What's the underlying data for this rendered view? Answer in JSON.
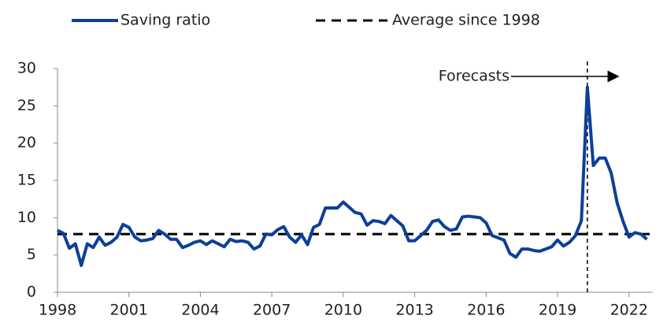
{
  "chart_data": {
    "type": "line",
    "x": [
      1998,
      1998.25,
      1998.5,
      1998.75,
      1999,
      1999.25,
      1999.5,
      1999.75,
      2000,
      2000.25,
      2000.5,
      2000.75,
      2001,
      2001.25,
      2001.5,
      2001.75,
      2002,
      2002.25,
      2002.5,
      2002.75,
      2003,
      2003.25,
      2003.5,
      2003.75,
      2004,
      2004.25,
      2004.5,
      2004.75,
      2005,
      2005.25,
      2005.5,
      2005.75,
      2006,
      2006.25,
      2006.5,
      2006.75,
      2007,
      2007.25,
      2007.5,
      2007.75,
      2008,
      2008.25,
      2008.5,
      2008.75,
      2009,
      2009.25,
      2009.5,
      2009.75,
      2010,
      2010.25,
      2010.5,
      2010.75,
      2011,
      2011.25,
      2011.5,
      2011.75,
      2012,
      2012.25,
      2012.5,
      2012.75,
      2013,
      2013.25,
      2013.5,
      2013.75,
      2014,
      2014.25,
      2014.5,
      2014.75,
      2015,
      2015.25,
      2015.5,
      2015.75,
      2016,
      2016.25,
      2016.5,
      2016.75,
      2017,
      2017.25,
      2017.5,
      2017.75,
      2018,
      2018.25,
      2018.5,
      2018.75,
      2019,
      2019.25,
      2019.5,
      2019.75,
      2020,
      2020.25,
      2020.5,
      2020.75,
      2021,
      2021.25,
      2021.5,
      2021.75,
      2022,
      2022.25,
      2022.5,
      2022.75
    ],
    "series": [
      {
        "name": "Saving ratio",
        "color": "#0c3f99",
        "values": [
          8.3,
          7.9,
          5.9,
          6.5,
          3.6,
          6.5,
          6.0,
          7.4,
          6.3,
          6.7,
          7.4,
          9.1,
          8.7,
          7.4,
          6.9,
          7.0,
          7.2,
          8.3,
          7.8,
          7.1,
          7.1,
          6.0,
          6.3,
          6.7,
          6.9,
          6.4,
          6.9,
          6.5,
          6.1,
          7.1,
          6.8,
          6.9,
          6.7,
          5.8,
          6.2,
          7.8,
          7.7,
          8.4,
          8.8,
          7.4,
          6.7,
          7.7,
          6.4,
          8.7,
          9.1,
          11.3,
          11.3,
          11.3,
          12.1,
          11.4,
          10.7,
          10.5,
          9.0,
          9.6,
          9.5,
          9.2,
          10.3,
          9.6,
          8.9,
          6.9,
          6.9,
          7.6,
          8.3,
          9.5,
          9.7,
          8.8,
          8.3,
          8.5,
          10.1,
          10.2,
          10.1,
          10.0,
          9.3,
          7.6,
          7.3,
          7.0,
          5.2,
          4.7,
          5.8,
          5.8,
          5.6,
          5.5,
          5.8,
          6.1,
          7.0,
          6.2,
          6.7,
          7.6,
          9.6,
          27.5,
          17.0,
          18.0,
          18.0,
          16.0,
          12.0,
          9.5,
          7.4,
          8.0,
          7.8,
          7.1
        ]
      }
    ],
    "average_line": {
      "name": "Average since 1998",
      "value": 7.8,
      "color": "#000000"
    },
    "forecast": {
      "label": "Forecasts",
      "x": 2020.25
    },
    "xlim": [
      1998,
      2023
    ],
    "xticks": [
      1998,
      2001,
      2004,
      2007,
      2010,
      2013,
      2016,
      2019,
      2022
    ],
    "ylim": [
      0,
      30
    ],
    "yticks": [
      0,
      5,
      10,
      15,
      20,
      25,
      30
    ],
    "grid": false
  }
}
